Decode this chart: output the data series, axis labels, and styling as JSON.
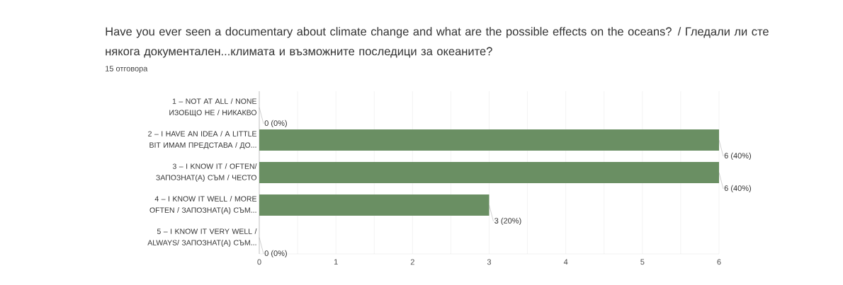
{
  "chart_data": {
    "type": "bar",
    "orientation": "horizontal",
    "title": "Have you ever seen a documentary about climate change and what are the possible effects on the oceans? / Гледали ли сте някога документален...климата и възможните последици за океаните?",
    "subtitle": "15 отговора",
    "categories": [
      "1 – NOT AT ALL / NONE ИЗОБЩО НЕ / НИКАКВО",
      "2 – I HAVE AN IDEA / A LITTLE BIT ИМАМ ПРЕДСТАВА / ДО...",
      "3 – I KNOW IT / OFTEN/ ЗАПОЗНАТ(А) СЪМ / ЧЕСТО",
      "4 – I KNOW IT WELL / MORE OFTEN / ЗАПОЗНАТ(А) СЪМ...",
      "5 – I KNOW IT VERY WELL / ALWAYS/ ЗАПОЗНАТ(А) СЪМ..."
    ],
    "values": [
      0,
      6,
      6,
      3,
      0
    ],
    "value_labels": [
      "0 (0%)",
      "6 (40%)",
      "6 (40%)",
      "3 (20%)",
      "0 (0%)"
    ],
    "color": "#6a8f63",
    "xlim": [
      0,
      6
    ],
    "xticks": [
      0,
      {
        "value": 0.5,
        "label": null
      },
      1,
      {
        "value": 1.5,
        "label": null
      },
      2,
      {
        "value": 2.5,
        "label": null
      },
      3,
      {
        "value": 3.5,
        "label": null
      },
      4,
      {
        "value": 4.5,
        "label": null
      },
      5,
      {
        "value": 5.5,
        "label": null
      },
      6
    ],
    "grid": "x"
  }
}
